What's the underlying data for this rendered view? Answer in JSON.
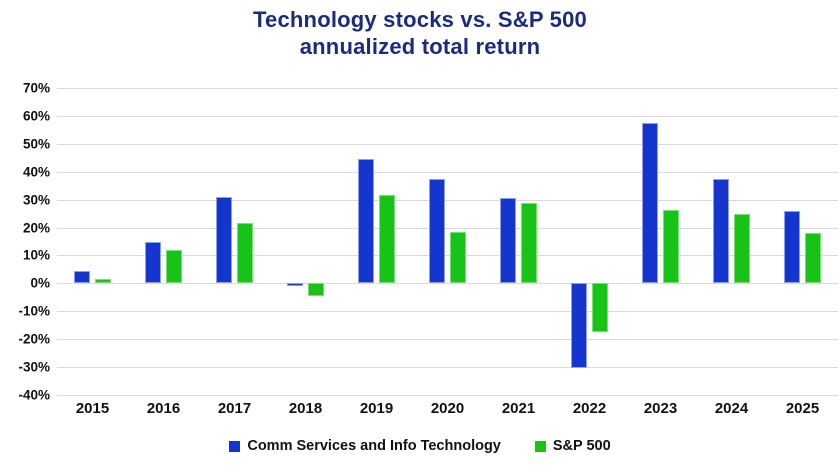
{
  "title": {
    "line1": "Technology stocks vs. S&P 500",
    "line2": "annualized total return"
  },
  "colors": {
    "title": "#1b2c7e",
    "series_blue": "#1535cf",
    "series_green": "#17c317",
    "gridline": "#d9d9d9",
    "axis_text": "#111111"
  },
  "chart_data": {
    "type": "bar",
    "title": "Technology stocks vs. S&P 500 annualized total return",
    "categories": [
      "2015",
      "2016",
      "2017",
      "2018",
      "2019",
      "2020",
      "2021",
      "2022",
      "2023",
      "2024",
      "2025"
    ],
    "series": [
      {
        "name": "Comm Services and Info Technology",
        "color": "#1535cf",
        "values": [
          4.5,
          15,
          31,
          -1,
          44.5,
          37.5,
          30.5,
          -30.5,
          57.5,
          37.5,
          26
        ]
      },
      {
        "name": "S&P 500",
        "color": "#17c317",
        "values": [
          1.4,
          12,
          21.8,
          -4.4,
          31.5,
          18.4,
          28.7,
          -17.5,
          26.3,
          25,
          18
        ]
      }
    ],
    "xlabel": "",
    "ylabel": "",
    "ylim": [
      -40,
      70
    ],
    "ytick_step": 10,
    "ytick_suffix": "%",
    "grid": true,
    "legend_position": "bottom"
  }
}
